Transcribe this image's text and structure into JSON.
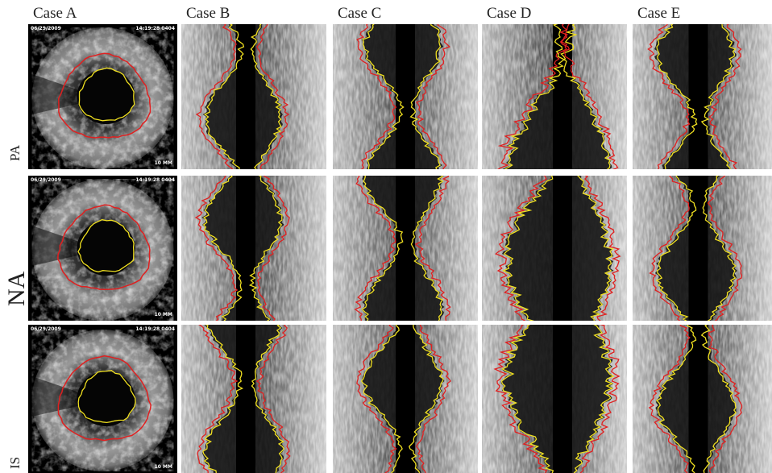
{
  "columns": [
    "Case A",
    "Case B",
    "Case C",
    "Case D",
    "Case E"
  ],
  "rows": [
    "PA",
    "NA",
    "IS"
  ],
  "overlay": {
    "date": "06/29/2009",
    "time": "14:19:28 0404",
    "scale": "10 MM"
  }
}
